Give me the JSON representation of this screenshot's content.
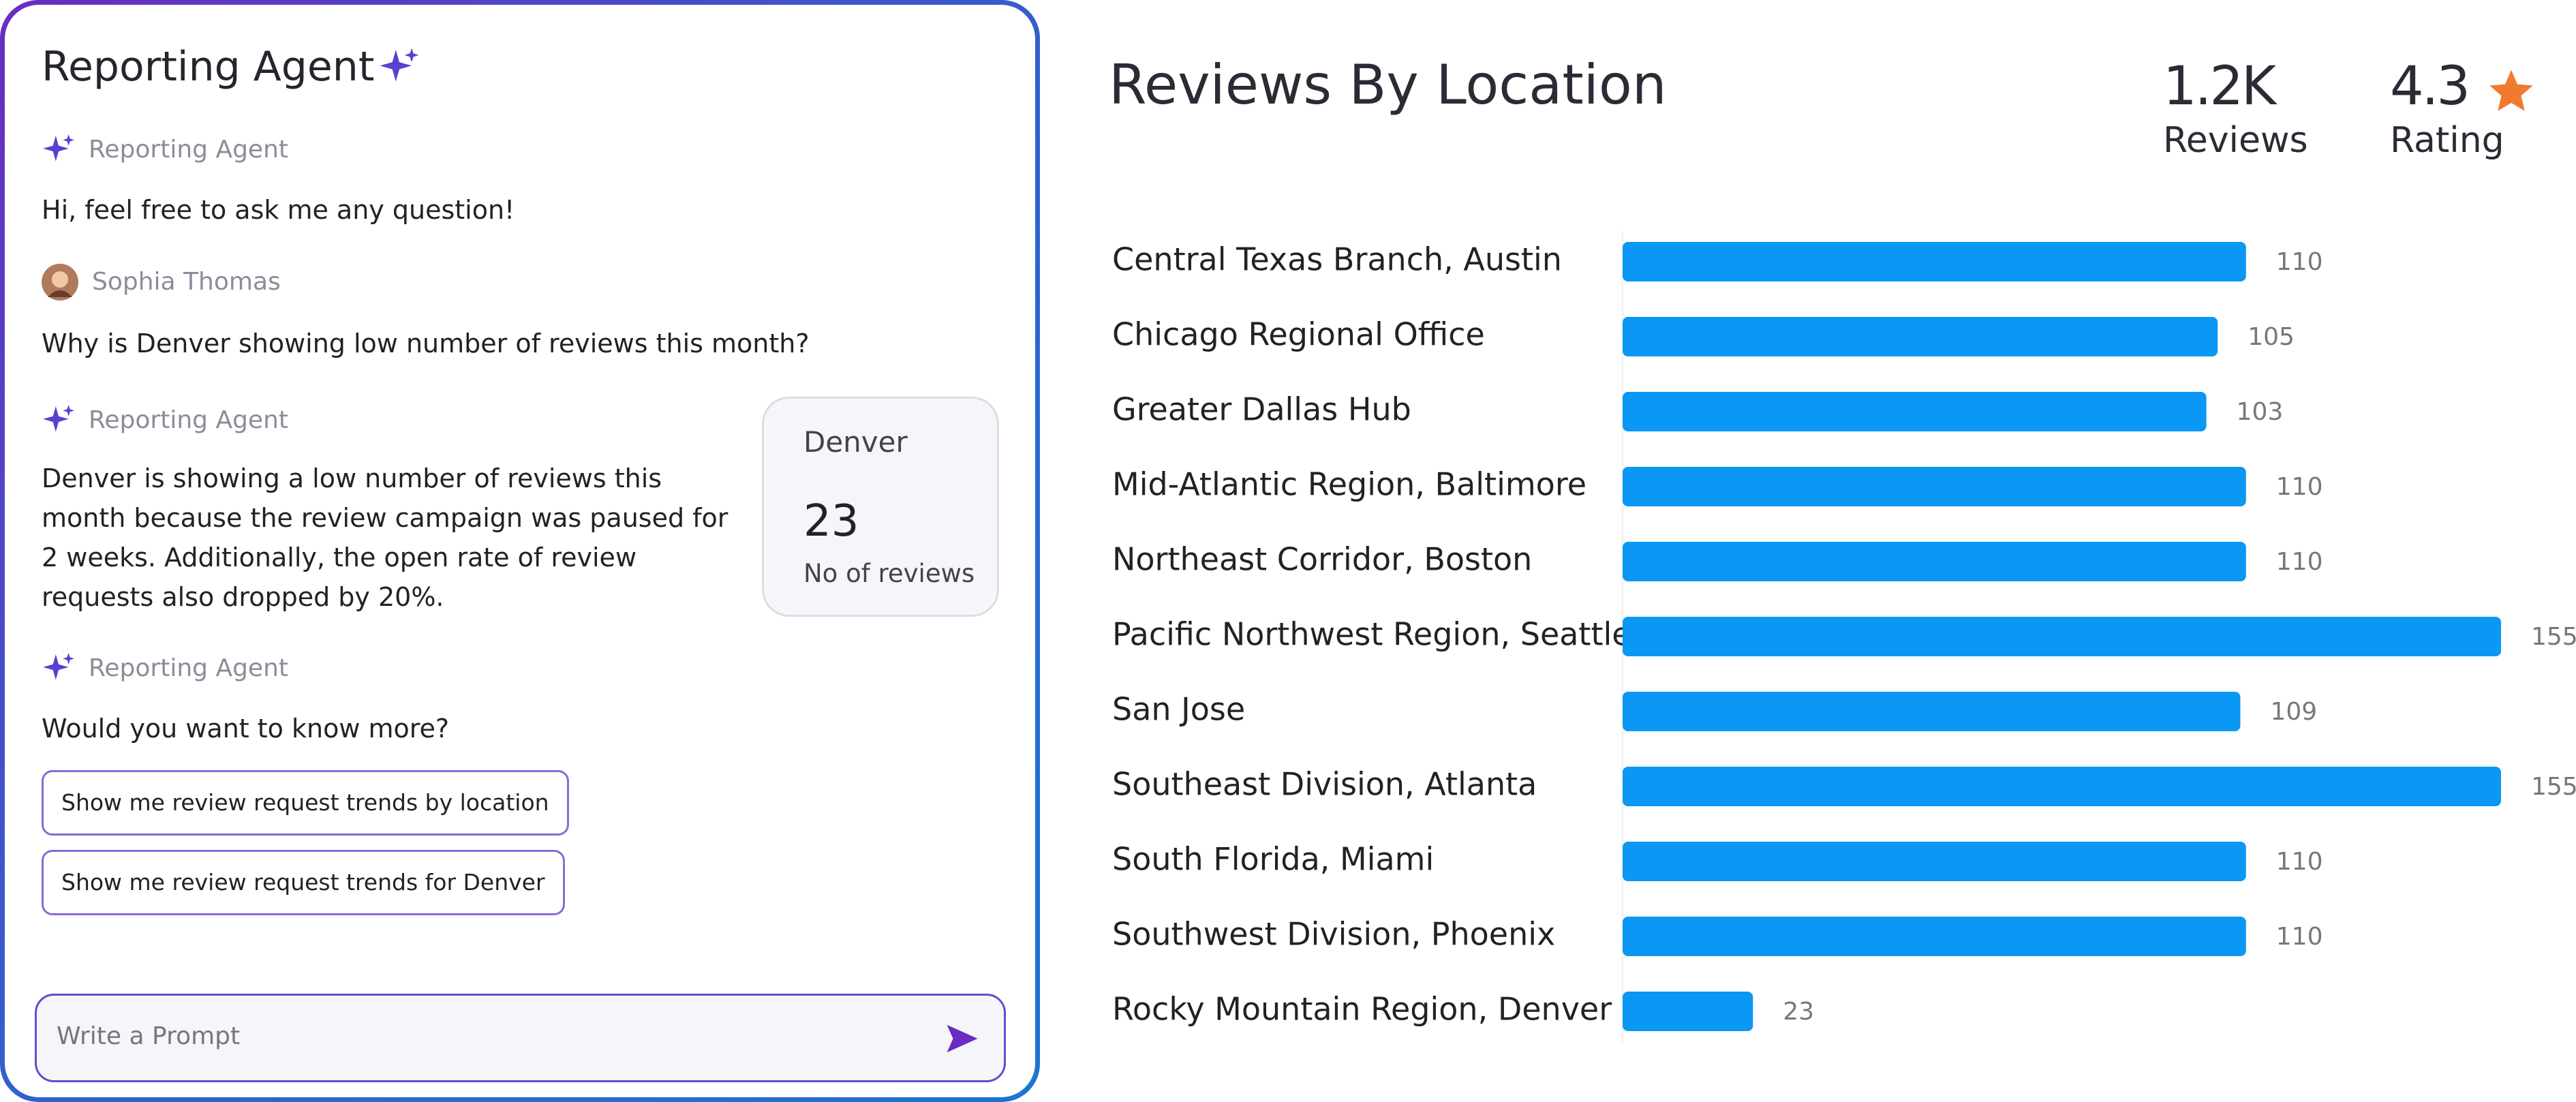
{
  "agent_panel": {
    "title": "Reporting Agent",
    "messages": [
      {
        "sender": "Reporting Agent",
        "text": "Hi, feel free to ask me any question!"
      },
      {
        "sender": "Sophia Thomas",
        "text": "Why is Denver showing low number of reviews this month?"
      },
      {
        "sender": "Reporting Agent",
        "text": "Denver is showing a low number of reviews this month because the review campaign was paused for 2 weeks. Additionally, the open rate of review requests also dropped by 20%."
      },
      {
        "sender": "Reporting Agent",
        "text": "Would you want to know more?"
      }
    ],
    "card": {
      "title": "Denver",
      "value": 23,
      "label": "No of reviews"
    },
    "suggestions": [
      "Show me review request trends by location",
      "Show me review request trends for Denver"
    ],
    "prompt_placeholder": "Write a Prompt"
  },
  "stats": [
    {
      "value": "1.2K",
      "label": "Reviews"
    },
    {
      "value": 4.3,
      "label": "Rating"
    }
  ],
  "chart_data": {
    "type": "bar",
    "orientation": "horizontal",
    "title": "Reviews By Location",
    "categories": [
      "Central Texas Branch, Austin",
      "Chicago Regional Office",
      "Greater Dallas Hub",
      "Mid-Atlantic Region, Baltimore",
      "Northeast Corridor, Boston",
      "Pacific Northwest Region, Seattle",
      "San Jose",
      "Southeast Division, Atlanta",
      "South Florida, Miami",
      "Southwest Division, Phoenix",
      "Rocky Mountain Region, Denver"
    ],
    "values": [
      110,
      105,
      103,
      110,
      110,
      155,
      109,
      155,
      110,
      110,
      23
    ],
    "color": "#0b97f4"
  }
}
